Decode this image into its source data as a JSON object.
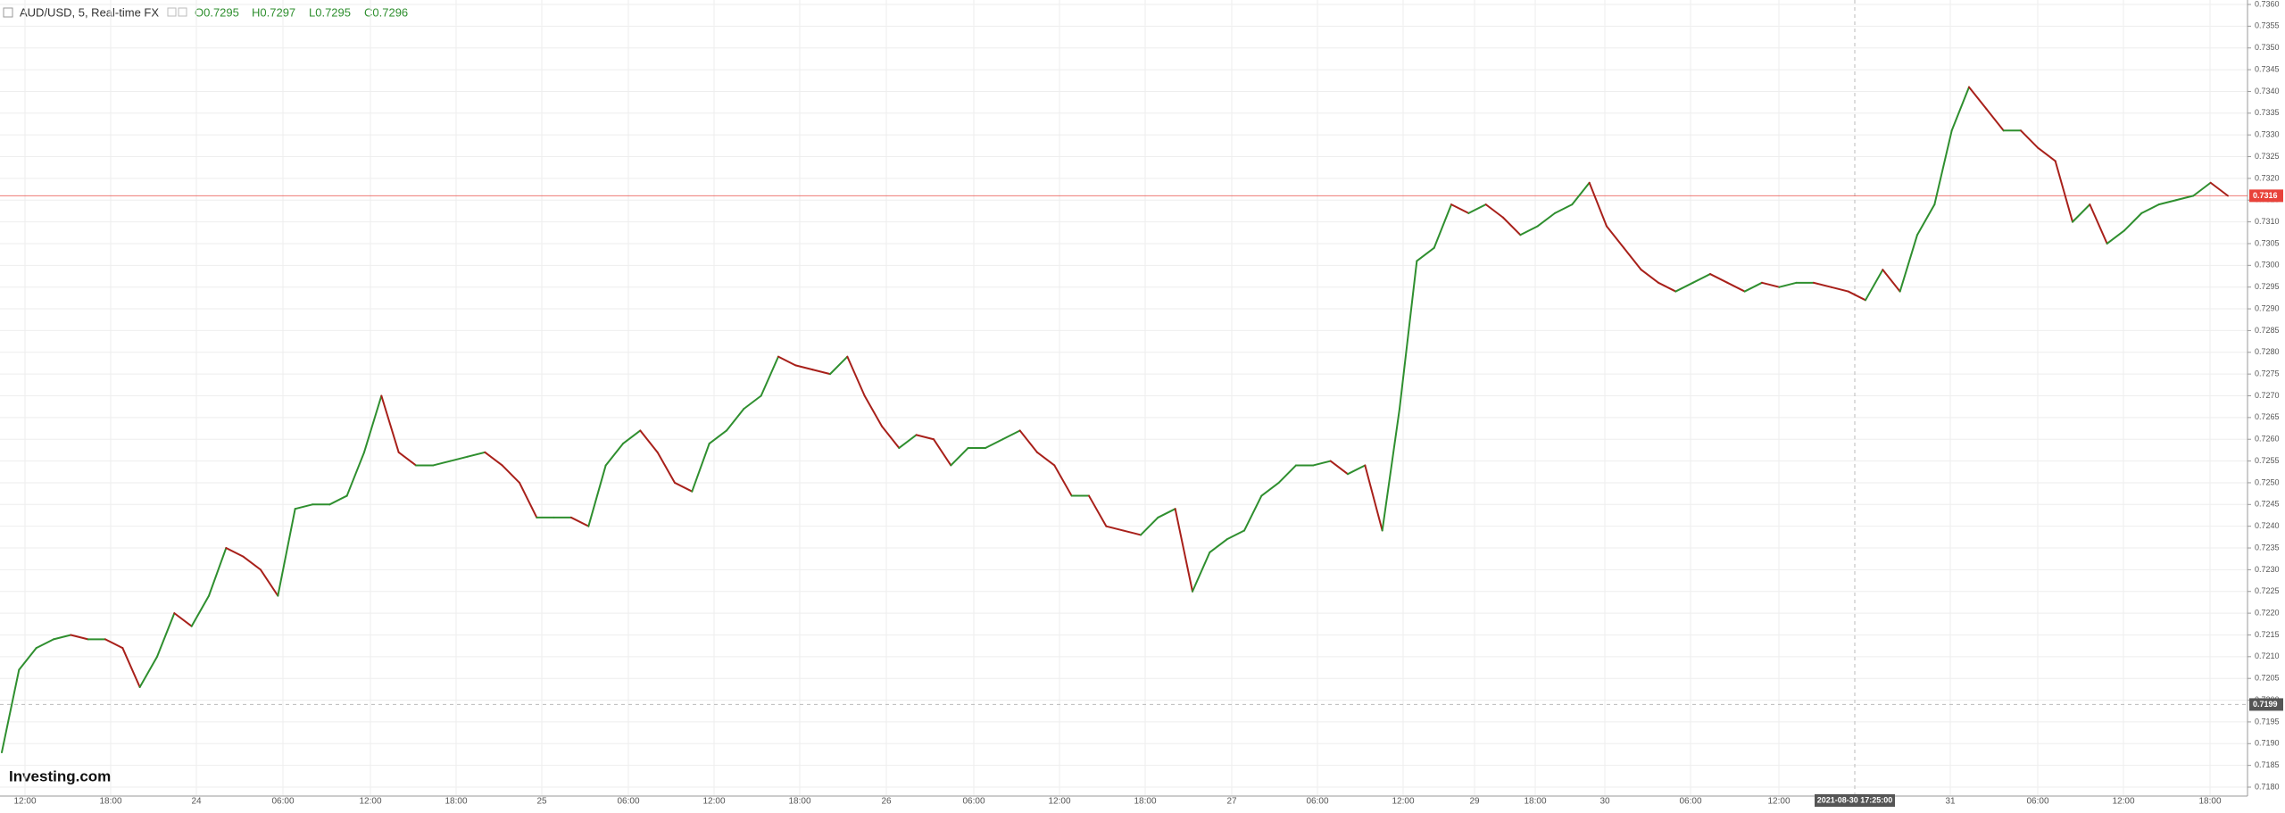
{
  "chart_data": {
    "type": "line",
    "title": "AUD/USD, 5, Real-time FX",
    "ohlc": [
      "O0.7295",
      "H0.7297",
      "L0.7295",
      "C0.7296"
    ],
    "brand": "Investing.com",
    "crosshair_time": "2021-08-30 17:25:00",
    "colors": {
      "up": "#2f8f2f",
      "down": "#a8201a",
      "grid": "#eeeeee",
      "last": "#e8423a",
      "cross": "#555555"
    },
    "last_price": {
      "value": 0.7316,
      "label": "0.7316"
    },
    "cross_price": {
      "value": 0.7199,
      "label": "0.7199"
    },
    "x_tick_labels": [
      "12:00",
      "18:00",
      "24",
      "06:00",
      "12:00",
      "18:00",
      "25",
      "06:00",
      "12:00",
      "18:00",
      "26",
      "06:00",
      "12:00",
      "18:00",
      "27",
      "06:00",
      "12:00",
      "29",
      "18:00",
      "30",
      "06:00",
      "12:00",
      "31",
      "06:00",
      "12:00",
      "18:00"
    ],
    "values": [
      0.7188,
      0.7207,
      0.7212,
      0.7214,
      0.7215,
      0.7214,
      0.7214,
      0.7212,
      0.7203,
      0.721,
      0.722,
      0.7217,
      0.7224,
      0.7235,
      0.7233,
      0.723,
      0.7224,
      0.7244,
      0.7245,
      0.7245,
      0.7247,
      0.7257,
      0.727,
      0.7257,
      0.7254,
      0.7254,
      0.7255,
      0.7256,
      0.7257,
      0.7254,
      0.725,
      0.7242,
      0.7242,
      0.7242,
      0.724,
      0.7254,
      0.7259,
      0.7262,
      0.7257,
      0.725,
      0.7248,
      0.7259,
      0.7262,
      0.7267,
      0.727,
      0.7279,
      0.7277,
      0.7276,
      0.7275,
      0.7279,
      0.727,
      0.7263,
      0.7258,
      0.7261,
      0.726,
      0.7254,
      0.7258,
      0.7258,
      0.726,
      0.7262,
      0.7257,
      0.7254,
      0.7247,
      0.7247,
      0.724,
      0.7239,
      0.7238,
      0.7242,
      0.7244,
      0.7225,
      0.7234,
      0.7237,
      0.7239,
      0.7247,
      0.725,
      0.7254,
      0.7254,
      0.7255,
      0.7252,
      0.7254,
      0.7239,
      0.7267,
      0.7301,
      0.7304,
      0.7314,
      0.7312,
      0.7314,
      0.7311,
      0.7307,
      0.7309,
      0.7312,
      0.7314,
      0.7319,
      0.7309,
      0.7304,
      0.7299,
      0.7296,
      0.7294,
      0.7296,
      0.7298,
      0.7296,
      0.7294,
      0.7296,
      0.7295,
      0.7296,
      0.7296,
      0.7295,
      0.7294,
      0.7292,
      0.7299,
      0.7294,
      0.7307,
      0.7314,
      0.7331,
      0.7341,
      0.7336,
      0.7331,
      0.7331,
      0.7327,
      0.7324,
      0.731,
      0.7314,
      0.7305,
      0.7308,
      0.7312,
      0.7314,
      0.7315,
      0.7316,
      0.7319,
      0.7316
    ],
    "ylim": [
      0.718,
      0.736
    ],
    "yticks": [
      {
        "value": 0.718,
        "label": "0.7180"
      },
      {
        "value": 0.7185,
        "label": "0.7185"
      },
      {
        "value": 0.719,
        "label": "0.7190"
      },
      {
        "value": 0.7195,
        "label": "0.7195"
      },
      {
        "value": 0.72,
        "label": "0.7200"
      },
      {
        "value": 0.7205,
        "label": "0.7205"
      },
      {
        "value": 0.721,
        "label": "0.7210"
      },
      {
        "value": 0.7215,
        "label": "0.7215"
      },
      {
        "value": 0.722,
        "label": "0.7220"
      },
      {
        "value": 0.7225,
        "label": "0.7225"
      },
      {
        "value": 0.723,
        "label": "0.7230"
      },
      {
        "value": 0.7235,
        "label": "0.7235"
      },
      {
        "value": 0.724,
        "label": "0.7240"
      },
      {
        "value": 0.7245,
        "label": "0.7245"
      },
      {
        "value": 0.725,
        "label": "0.7250"
      },
      {
        "value": 0.7255,
        "label": "0.7255"
      },
      {
        "value": 0.726,
        "label": "0.7260"
      },
      {
        "value": 0.7265,
        "label": "0.7265"
      },
      {
        "value": 0.727,
        "label": "0.7270"
      },
      {
        "value": 0.7275,
        "label": "0.7275"
      },
      {
        "value": 0.728,
        "label": "0.7280"
      },
      {
        "value": 0.7285,
        "label": "0.7285"
      },
      {
        "value": 0.729,
        "label": "0.7290"
      },
      {
        "value": 0.7295,
        "label": "0.7295"
      },
      {
        "value": 0.73,
        "label": "0.7300"
      },
      {
        "value": 0.7305,
        "label": "0.7305"
      },
      {
        "value": 0.731,
        "label": "0.7310"
      },
      {
        "value": 0.7315,
        "label": "0.7315"
      },
      {
        "value": 0.732,
        "label": "0.7320"
      },
      {
        "value": 0.7325,
        "label": "0.7325"
      },
      {
        "value": 0.733,
        "label": "0.7330"
      },
      {
        "value": 0.7335,
        "label": "0.7335"
      },
      {
        "value": 0.734,
        "label": "0.7340"
      },
      {
        "value": 0.7345,
        "label": "0.7345"
      },
      {
        "value": 0.735,
        "label": "0.7350"
      },
      {
        "value": 0.7355,
        "label": "0.7355"
      },
      {
        "value": 0.736,
        "label": "0.7360"
      }
    ],
    "grid": true
  }
}
